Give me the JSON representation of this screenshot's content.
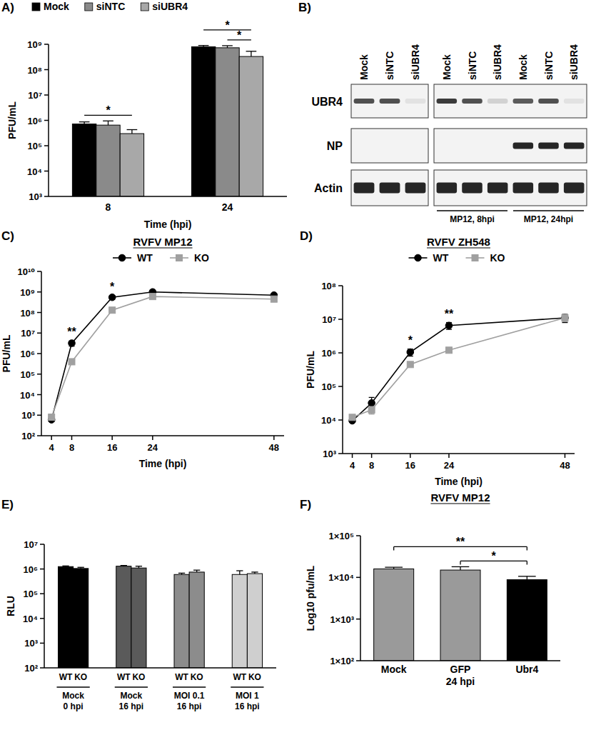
{
  "panel_labels": [
    "A)",
    "B)",
    "C)",
    "D)",
    "E)",
    "F)"
  ],
  "chart_data": [
    {
      "type": "bar",
      "categories": [
        "8",
        "24"
      ],
      "series": [
        {
          "name": "Mock",
          "color": "#000000",
          "values": [
            720000,
            800000000
          ],
          "errors": [
            150000,
            100000000
          ]
        },
        {
          "name": "siNTC",
          "color": "#8a8a8a",
          "values": [
            650000,
            730000000
          ],
          "errors": [
            300000,
            150000000
          ]
        },
        {
          "name": "siUBR4",
          "color": "#a8a8a8",
          "values": [
            300000,
            330000000
          ],
          "errors": [
            130000,
            200000000
          ]
        }
      ],
      "x_label": "Time (hpi)",
      "y_label": "PFU/mL",
      "log": "y",
      "ylim": [
        1000,
        1000000000
      ],
      "yticks": [
        {
          "value": 1000,
          "label": "10³"
        },
        {
          "value": 10000,
          "label": "10⁴"
        },
        {
          "value": 100000,
          "label": "10⁵"
        },
        {
          "value": 1000000,
          "label": "10⁶"
        },
        {
          "value": 10000000,
          "label": "10⁷"
        },
        {
          "value": 100000000,
          "label": "10⁸"
        },
        {
          "value": 1000000000,
          "label": "10⁹"
        }
      ],
      "legend": "top",
      "significance": [
        {
          "category": 0,
          "from": 0,
          "to": 2,
          "label": "*"
        },
        {
          "category": 1,
          "from": 1,
          "to": 2,
          "label": "*"
        },
        {
          "category": 1,
          "from": 0,
          "to": 2,
          "label": "*"
        }
      ]
    },
    {
      "type": "line",
      "title": "RVFV MP12",
      "x_label": "Time (hpi)",
      "y_label": "PFU/mL",
      "x": [
        4,
        8,
        16,
        24,
        48
      ],
      "xlim": [
        2,
        50
      ],
      "xticks": [
        4,
        8,
        16,
        24,
        48
      ],
      "log": "y",
      "ylim": [
        100,
        10000000000
      ],
      "yticks": [
        {
          "value": 100,
          "label": "10²"
        },
        {
          "value": 1000,
          "label": "10³"
        },
        {
          "value": 10000,
          "label": "10⁴"
        },
        {
          "value": 100000,
          "label": "10⁵"
        },
        {
          "value": 1000000,
          "label": "10⁶"
        },
        {
          "value": 10000000,
          "label": "10⁷"
        },
        {
          "value": 100000000,
          "label": "10⁸"
        },
        {
          "value": 1000000000,
          "label": "10⁹"
        },
        {
          "value": 10000000000,
          "label": "10¹⁰"
        }
      ],
      "legend": "top",
      "series": [
        {
          "name": "WT",
          "color": "#000000",
          "marker": "circle",
          "values": [
            600,
            3200000,
            550000000,
            1000000000,
            700000000
          ],
          "errors": [
            100,
            900000,
            120000000,
            150000000,
            100000000
          ]
        },
        {
          "name": "KO",
          "color": "#a0a0a0",
          "marker": "square",
          "values": [
            800,
            400000,
            130000000,
            600000000,
            450000000
          ],
          "errors": [
            150,
            80000,
            20000000,
            80000000,
            60000000
          ]
        }
      ],
      "annotations": [
        {
          "x": 8,
          "text": "**"
        },
        {
          "x": 16,
          "text": "*"
        }
      ]
    },
    {
      "type": "line",
      "title": "RVFV ZH548",
      "x_label": "Time (hpi)",
      "y_label": "PFU/mL",
      "x": [
        4,
        8,
        16,
        24,
        48
      ],
      "xlim": [
        2,
        50
      ],
      "xticks": [
        4,
        8,
        16,
        24,
        48
      ],
      "log": "y",
      "ylim": [
        1000,
        100000000
      ],
      "yticks": [
        {
          "value": 1000,
          "label": "10³"
        },
        {
          "value": 10000,
          "label": "10⁴"
        },
        {
          "value": 100000,
          "label": "10⁵"
        },
        {
          "value": 1000000,
          "label": "10⁶"
        },
        {
          "value": 10000000,
          "label": "10⁷"
        },
        {
          "value": 100000000,
          "label": "10⁸"
        }
      ],
      "legend": "top",
      "series": [
        {
          "name": "WT",
          "color": "#000000",
          "marker": "circle",
          "values": [
            9500,
            32000,
            1050000,
            6500000,
            11000000
          ],
          "errors": [
            1000,
            15000,
            250000,
            1500000,
            3000000
          ]
        },
        {
          "name": "KO",
          "color": "#a0a0a0",
          "marker": "square",
          "values": [
            12000,
            20000,
            450000,
            1200000,
            11000000
          ],
          "errors": [
            1500,
            5000,
            60000,
            150000,
            2500000
          ]
        }
      ],
      "annotations": [
        {
          "x": 16,
          "text": "*"
        },
        {
          "x": 24,
          "text": "**"
        }
      ]
    },
    {
      "type": "bar",
      "categories": [
        "WT",
        "KO",
        "WT",
        "KO",
        "WT",
        "KO",
        "WT",
        "KO"
      ],
      "group_labels": [
        [
          "Mock",
          "0 hpi"
        ],
        [
          "Mock",
          "16 hpi"
        ],
        [
          "MOI 0.1",
          "16 hpi"
        ],
        [
          "MOI 1",
          "16 hpi"
        ]
      ],
      "values": [
        1250000,
        1050000,
        1300000,
        1100000,
        600000,
        750000,
        600000,
        650000
      ],
      "errors": [
        80000,
        120000,
        90000,
        200000,
        80000,
        150000,
        250000,
        100000
      ],
      "colors": [
        "#000000",
        "#000000",
        "#5a5a5a",
        "#5a5a5a",
        "#8c8c8c",
        "#8c8c8c",
        "#cfcfcf",
        "#cfcfcf"
      ],
      "y_label": "RLU",
      "log": "y",
      "ylim": [
        100,
        10000000
      ],
      "yticks": [
        {
          "value": 100,
          "label": "10²"
        },
        {
          "value": 1000,
          "label": "10³"
        },
        {
          "value": 10000,
          "label": "10⁴"
        },
        {
          "value": 100000,
          "label": "10⁵"
        },
        {
          "value": 1000000,
          "label": "10⁶"
        },
        {
          "value": 10000000,
          "label": "10⁷"
        }
      ]
    },
    {
      "type": "bar",
      "title": "RVFV MP12",
      "categories": [
        "Mock",
        "GFP",
        "Ubr4"
      ],
      "x_label": "24 hpi",
      "y_label": "Log10 pfu/mL",
      "values": [
        16000,
        15000,
        8800
      ],
      "errors": [
        1500,
        3000,
        1800
      ],
      "colors": [
        "#9a9a9a",
        "#9a9a9a",
        "#000000"
      ],
      "log": "y",
      "ylim": [
        100,
        100000
      ],
      "yticks": [
        {
          "value": 100,
          "label": "1×10²"
        },
        {
          "value": 1000,
          "label": "1×10³"
        },
        {
          "value": 10000,
          "label": "1×10⁴"
        },
        {
          "value": 100000,
          "label": "1×10⁵"
        }
      ],
      "significance": [
        {
          "from": 1,
          "to": 2,
          "label": "*"
        },
        {
          "from": 0,
          "to": 2,
          "label": "**"
        }
      ]
    }
  ],
  "blot": {
    "rows": [
      "UBR4",
      "NP",
      "Actin"
    ],
    "blocks": [
      {
        "lanes": [
          "Mock",
          "siNTC",
          "siUBR4"
        ],
        "bands": [
          [
            0.75,
            0.75,
            0.08
          ],
          [
            0,
            0,
            0
          ],
          [
            0.95,
            0.95,
            0.95
          ]
        ]
      },
      {
        "lanes": [
          "Mock",
          "siNTC",
          "siUBR4",
          "Mock",
          "siNTC",
          "siUBR4"
        ],
        "bands": [
          [
            0.85,
            0.75,
            0.15,
            0.7,
            0.75,
            0.08
          ],
          [
            0,
            0,
            0,
            0.95,
            0.95,
            0.95
          ],
          [
            0.95,
            0.95,
            0.95,
            0.95,
            0.95,
            0.95
          ]
        ],
        "conditions": [
          "MP12, 8hpi",
          "MP12, 24hpi"
        ]
      }
    ]
  }
}
